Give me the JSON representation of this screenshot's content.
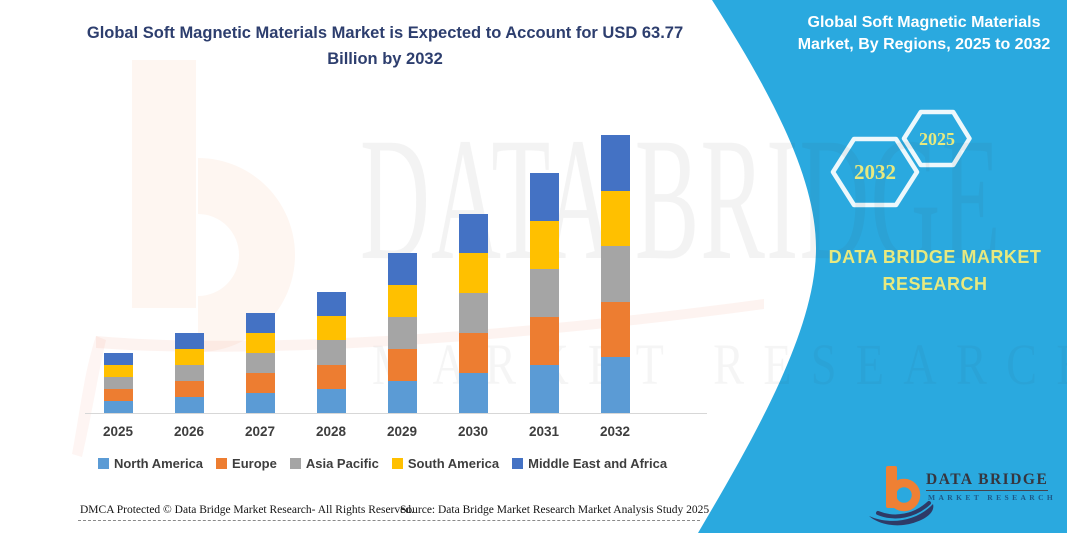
{
  "header": {
    "title_line1": "Global Soft Magnetic Materials Market is Expected to Account for USD 63.77",
    "title_line2": "Billion by 2032",
    "title_color": "#2d3e6e"
  },
  "panel": {
    "bg_color": "#2aa9df",
    "accent_text_color": "#e7e97f",
    "title_line1": "Global Soft Magnetic Materials",
    "title_line2": "Market, By Regions, 2025 to 2032",
    "hexagons": [
      {
        "label": "2032"
      },
      {
        "label": "2025"
      }
    ],
    "brand_line1": "DATA BRIDGE MARKET",
    "brand_line2": "RESEARCH"
  },
  "chart_data": {
    "type": "bar",
    "stacked": true,
    "title": "Global Soft Magnetic Materials Market is Expected to Account for USD 63.77 Billion by 2032",
    "unit": "USD Billion",
    "categories": [
      "2025",
      "2026",
      "2027",
      "2028",
      "2029",
      "2030",
      "2031",
      "2032"
    ],
    "series": [
      {
        "name": "North America",
        "color": "#5b9bd5",
        "values": [
          2.78,
          3.66,
          4.62,
          5.54,
          7.34,
          9.16,
          11.0,
          12.75
        ]
      },
      {
        "name": "Europe",
        "color": "#ed7d31",
        "values": [
          2.78,
          3.66,
          4.62,
          5.54,
          7.34,
          9.16,
          11.0,
          12.75
        ]
      },
      {
        "name": "Asia Pacific",
        "color": "#a5a5a5",
        "values": [
          2.78,
          3.66,
          4.62,
          5.54,
          7.34,
          9.16,
          11.0,
          12.75
        ]
      },
      {
        "name": "South America",
        "color": "#ffc000",
        "values": [
          2.78,
          3.66,
          4.62,
          5.54,
          7.34,
          9.16,
          11.0,
          12.75
        ]
      },
      {
        "name": "Middle East and Africa",
        "color": "#4472c4",
        "values": [
          2.78,
          3.66,
          4.62,
          5.54,
          7.34,
          9.16,
          11.0,
          12.77
        ]
      }
    ],
    "totals": [
      13.9,
      18.3,
      23.1,
      27.7,
      36.7,
      45.8,
      55.0,
      63.77
    ],
    "ylim": [
      0,
      63.77
    ],
    "grid": false,
    "value_axis_shown": false,
    "legend_position": "bottom"
  },
  "watermark": {
    "big_text": "DATA BRIDGE",
    "sub_text": "MARKET RESEARCH"
  },
  "logo": {
    "name_text": "DATA BRIDGE",
    "sub_text": "MARKET RESEARCH"
  },
  "footer": {
    "dmca": "DMCA Protected © Data Bridge Market Research-  All Rights Reserved.",
    "source": "Source: Data Bridge Market Research  Market Analysis Study 2025"
  }
}
